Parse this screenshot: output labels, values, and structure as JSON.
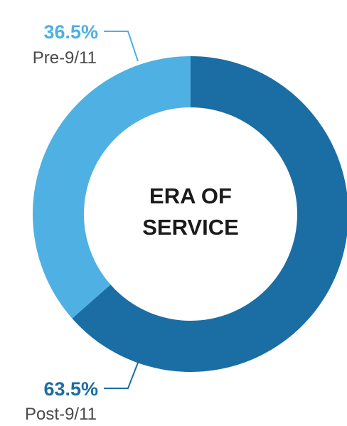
{
  "chart_data": {
    "type": "pie",
    "title": "ERA OF SERVICE",
    "title_lines": [
      "ERA OF",
      "SERVICE"
    ],
    "slices": [
      {
        "label": "Post-9/11",
        "value": 63.5,
        "display_value": "63.5%",
        "color": "#1a6ea3"
      },
      {
        "label": "Pre-9/11",
        "value": 36.5,
        "display_value": "36.5%",
        "color": "#4fb0e3"
      }
    ]
  }
}
